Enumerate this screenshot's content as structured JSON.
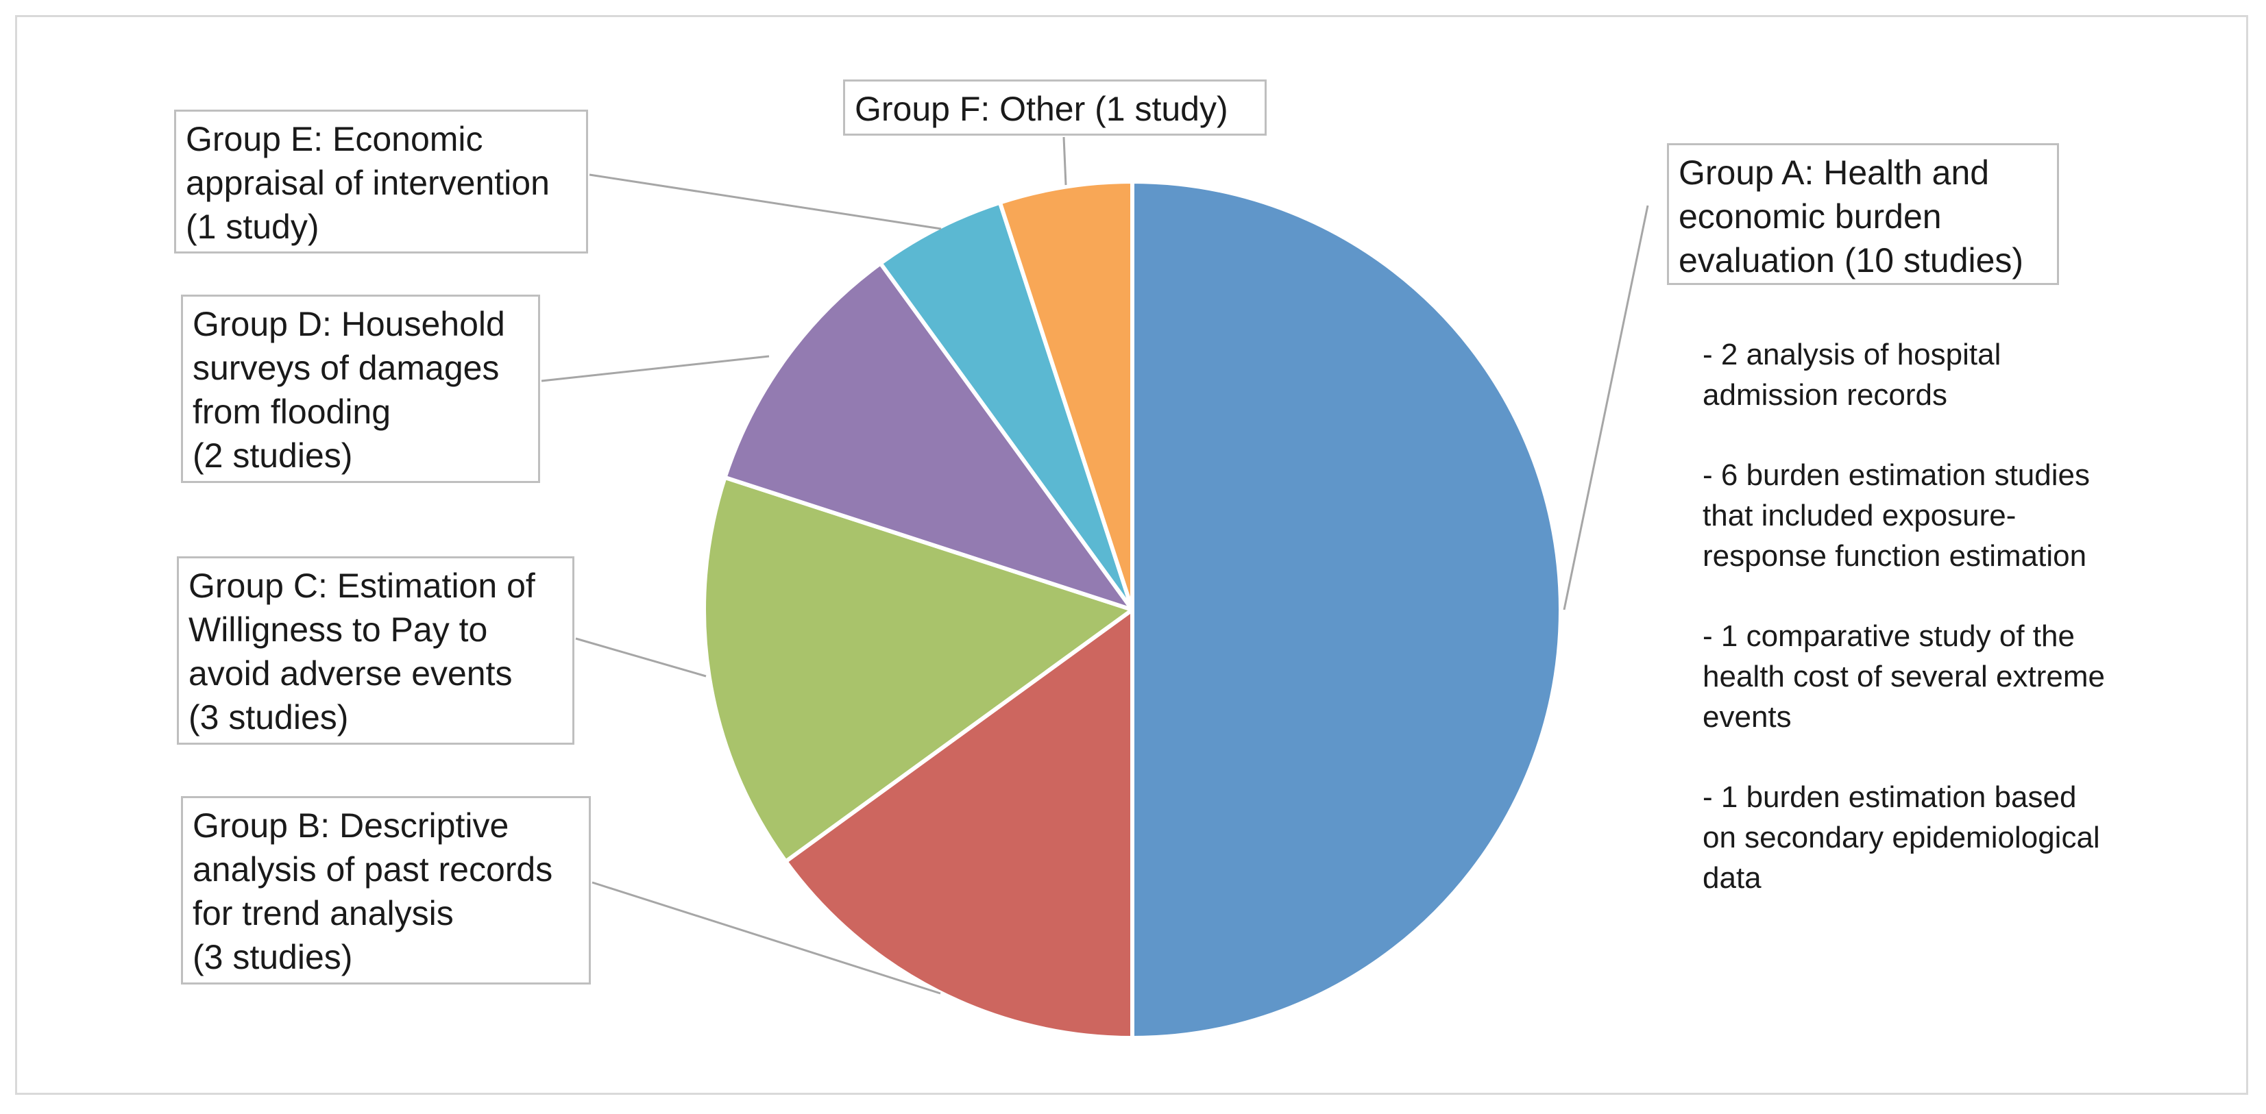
{
  "chart_data": {
    "type": "pie",
    "title": "",
    "start_angle_deg": 0,
    "direction": "clockwise",
    "slices": [
      {
        "key": "A",
        "label": "Group A: Health and\neconomic burden\nevaluation (10 studies)",
        "value": 10,
        "color": "#6096c9"
      },
      {
        "key": "B",
        "label": "Group B: Descriptive\nanalysis of past records\nfor trend analysis\n(3 studies)",
        "value": 3,
        "color": "#cd665f"
      },
      {
        "key": "C",
        "label": "Group C: Estimation of\nWilligness to Pay to\navoid adverse events\n(3 studies)",
        "value": 3,
        "color": "#a9c36b"
      },
      {
        "key": "D",
        "label": "Group D: Household\nsurveys of damages\nfrom flooding\n(2 studies)",
        "value": 2,
        "color": "#937bb1"
      },
      {
        "key": "E",
        "label": "Group E: Economic\nappraisal of intervention\n(1 study)",
        "value": 1,
        "color": "#5bb8d2"
      },
      {
        "key": "F",
        "label": "Group F: Other (1 study)",
        "value": 1,
        "color": "#f8a756"
      }
    ],
    "annotations": [
      "- 2 analysis of hospital\nadmission records",
      "- 6 burden estimation studies\nthat included exposure-\nresponse function estimation",
      "- 1 comparative study of the\nhealth cost of several extreme\nevents",
      "- 1 burden estimation based\non secondary epidemiological\ndata"
    ]
  }
}
